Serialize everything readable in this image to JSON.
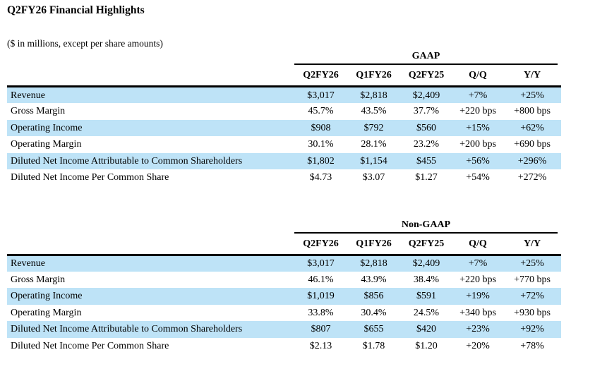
{
  "page": {
    "title": "Q2FY26 Financial Highlights",
    "subtitle": "($ in millions, except per share amounts)"
  },
  "colors": {
    "row_highlight": "#bee3f7",
    "text": "#000000",
    "rule": "#000000"
  },
  "columns": [
    "Q2FY26",
    "Q1FY26",
    "Q2FY25",
    "Q/Q",
    "Y/Y"
  ],
  "gaap": {
    "group_label": "GAAP",
    "rows": [
      {
        "label": "Revenue",
        "values": [
          "$3,017",
          "$2,818",
          "$2,409",
          "+7%",
          "+25%"
        ]
      },
      {
        "label": "Gross Margin",
        "values": [
          "45.7%",
          "43.5%",
          "37.7%",
          "+220 bps",
          "+800 bps"
        ]
      },
      {
        "label": "Operating Income",
        "values": [
          "$908",
          "$792",
          "$560",
          "+15%",
          "+62%"
        ]
      },
      {
        "label": "Operating Margin",
        "values": [
          "30.1%",
          "28.1%",
          "23.2%",
          "+200 bps",
          "+690 bps"
        ]
      },
      {
        "label": "Diluted Net Income Attributable to Common Shareholders",
        "values": [
          "$1,802",
          "$1,154",
          "$455",
          "+56%",
          "+296%"
        ]
      },
      {
        "label": "Diluted Net Income Per Common Share",
        "values": [
          "$4.73",
          "$3.07",
          "$1.27",
          "+54%",
          "+272%"
        ]
      }
    ]
  },
  "non_gaap": {
    "group_label": "Non-GAAP",
    "rows": [
      {
        "label": "Revenue",
        "values": [
          "$3,017",
          "$2,818",
          "$2,409",
          "+7%",
          "+25%"
        ]
      },
      {
        "label": "Gross Margin",
        "values": [
          "46.1%",
          "43.9%",
          "38.4%",
          "+220 bps",
          "+770 bps"
        ]
      },
      {
        "label": "Operating Income",
        "values": [
          "$1,019",
          "$856",
          "$591",
          "+19%",
          "+72%"
        ]
      },
      {
        "label": "Operating Margin",
        "values": [
          "33.8%",
          "30.4%",
          "24.5%",
          "+340 bps",
          "+930 bps"
        ]
      },
      {
        "label": "Diluted Net Income Attributable to Common Shareholders",
        "values": [
          "$807",
          "$655",
          "$420",
          "+23%",
          "+92%"
        ]
      },
      {
        "label": "Diluted Net Income Per Common Share",
        "values": [
          "$2.13",
          "$1.78",
          "$1.20",
          "+20%",
          "+78%"
        ]
      }
    ]
  }
}
